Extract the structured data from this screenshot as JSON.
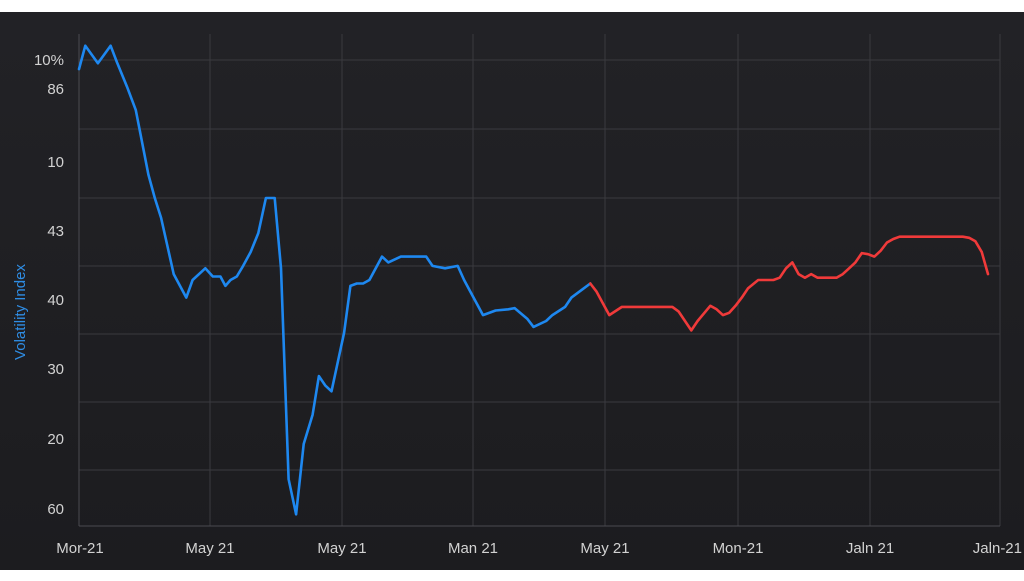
{
  "chart_data": {
    "type": "line",
    "title": "",
    "xlabel": "",
    "ylabel": "Volatility Index",
    "y_tick_labels": [
      "10%",
      "86",
      "10",
      "43",
      "40",
      "30",
      "20",
      "60"
    ],
    "x_tick_labels": [
      "Mor-21",
      "May 21",
      "May 21",
      "Man 21",
      "May 21",
      "Mon-21",
      "Jaln 21",
      "Jaln-21"
    ],
    "grid": true,
    "colors": {
      "rising": "#1e88f0",
      "falling": "#f03a3a",
      "background": "#1f1f23",
      "grid": "#3a3a3f"
    },
    "series": [
      {
        "color": "#1e88f0",
        "x": [
          0.0,
          0.05,
          0.15,
          0.25,
          0.3,
          0.38,
          0.45,
          0.55,
          0.6,
          0.65,
          0.75,
          0.85,
          0.9,
          1.0,
          1.06,
          1.12,
          1.16,
          1.2,
          1.25,
          1.3,
          1.36,
          1.42,
          1.48,
          1.55,
          1.6,
          1.66,
          1.72,
          1.78,
          1.85,
          1.9,
          1.95,
          2.0,
          2.05,
          2.1,
          2.15,
          2.2,
          2.25,
          2.3,
          2.4,
          2.45,
          2.55,
          2.65,
          2.75,
          2.8,
          2.9,
          3.0,
          3.05,
          3.1,
          3.2,
          3.3,
          3.4,
          3.45,
          3.55,
          3.6,
          3.7,
          3.75,
          3.85,
          3.9,
          4.0,
          4.05
        ],
        "y": [
          75,
          77,
          75.5,
          77,
          75.6,
          73.5,
          71.5,
          66,
          64,
          62.3,
          57.5,
          55.5,
          57,
          58,
          57.3,
          57.3,
          56.5,
          57,
          57.3,
          58.2,
          59.4,
          61,
          64,
          64,
          58,
          40,
          37,
          43,
          45.5,
          48.8,
          48,
          47.5,
          50,
          52.5,
          56.5,
          56.7,
          56.7,
          57,
          59,
          58.5,
          59,
          59,
          59,
          58.2,
          58,
          58.2,
          57,
          56,
          54,
          54.4,
          54.5,
          54.6,
          53.7,
          53,
          53.5,
          54,
          54.7,
          55.5,
          56.3,
          56.7
        ]
      },
      {
        "color": "#f03a3a",
        "x": [
          4.05,
          4.1,
          4.15,
          4.2,
          4.3,
          4.45,
          4.6,
          4.7,
          4.75,
          4.8,
          4.85,
          4.9,
          5.0,
          5.05,
          5.1,
          5.15,
          5.2,
          5.25,
          5.3,
          5.38,
          5.45,
          5.5,
          5.55,
          5.6,
          5.65,
          5.7,
          5.75,
          5.8,
          5.85,
          5.95,
          6.0,
          6.05,
          6.1,
          6.15,
          6.2,
          6.25,
          6.3,
          6.35,
          6.4,
          6.45,
          6.5,
          6.55,
          6.6,
          6.7,
          6.75,
          6.9,
          7.0,
          7.05,
          7.1,
          7.15,
          7.2
        ],
        "y": [
          56.7,
          56,
          55,
          54,
          54.7,
          54.7,
          54.7,
          54.7,
          54.3,
          53.5,
          52.7,
          53.5,
          54.8,
          54.5,
          54,
          54.2,
          54.8,
          55.5,
          56.3,
          57,
          57,
          57,
          57.2,
          58,
          58.5,
          57.5,
          57.2,
          57.5,
          57.2,
          57.2,
          57.2,
          57.5,
          58,
          58.5,
          59.3,
          59.2,
          59,
          59.5,
          60.2,
          60.5,
          60.7,
          60.7,
          60.7,
          60.7,
          60.7,
          60.7,
          60.7,
          60.6,
          60.3,
          59.4,
          57.5
        ]
      }
    ]
  }
}
